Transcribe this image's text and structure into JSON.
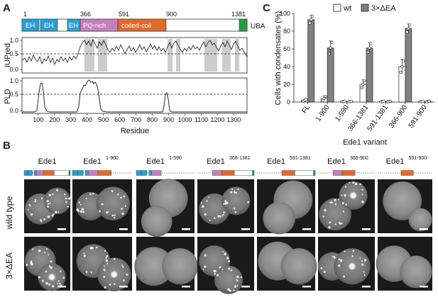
{
  "panels": {
    "a_letter": "A",
    "b_letter": "B",
    "c_letter": "C"
  },
  "domain_map": {
    "positions": [
      "1",
      "366",
      "591",
      "900",
      "1381"
    ],
    "domains": [
      {
        "label": "EH",
        "color": "#2e9fd0"
      },
      {
        "label": "EH",
        "color": "#2e9fd0"
      },
      {
        "label": "EH",
        "color": "#2e9fd0"
      },
      {
        "label": "PQ-rich",
        "color": "#c47fc0"
      },
      {
        "label": "coiled-coil",
        "color": "#e06a2d"
      },
      {
        "label": "UBA",
        "color": "#2a9a4a"
      }
    ]
  },
  "iupred": {
    "ylabel": "IUPred",
    "yticks": [
      "0.0",
      "0.5",
      "1.0"
    ],
    "threshold": 0.5
  },
  "pld": {
    "ylabel": "PLD",
    "yticks": [
      "0.0",
      "0.5",
      "1.0"
    ],
    "threshold": 0.5,
    "xticks": [
      "100",
      "200",
      "300",
      "400",
      "500",
      "600",
      "700",
      "800",
      "900",
      "1000",
      "1100",
      "1200",
      "1300"
    ],
    "xlabel": "Residue"
  },
  "micrographs": {
    "variants": [
      {
        "base": "Ede1",
        "sup": ""
      },
      {
        "base": "Ede1",
        "sup": "1-900"
      },
      {
        "base": "Ede1",
        "sup": "1-590"
      },
      {
        "base": "Ede1",
        "sup": "366-1381"
      },
      {
        "base": "Ede1",
        "sup": "591-1381"
      },
      {
        "base": "Ede1",
        "sup": "366-900"
      },
      {
        "base": "Ede1",
        "sup": "591-900"
      }
    ],
    "row_labels": [
      "wild type",
      "3×ΔEA"
    ]
  },
  "chart_data": {
    "type": "bar",
    "title": "",
    "ylabel": "Cells with condensates (%)",
    "xlabel": "Ede1 variant",
    "ylim": [
      0,
      100
    ],
    "yticks": [
      "0",
      "20",
      "40",
      "60",
      "80",
      "100"
    ],
    "categories": [
      "FL",
      "1-900",
      "1-590",
      "366-1381",
      "591-1381",
      "366-900",
      "591-900"
    ],
    "legend_position": "top",
    "series": [
      {
        "name": "wt",
        "color": "#ffffff",
        "values": [
          2,
          4,
          0.5,
          20,
          0.5,
          40,
          0.5
        ],
        "errors": [
          1,
          3,
          0.5,
          5,
          0.5,
          8,
          0.5
        ]
      },
      {
        "name": "3×ΔEA",
        "color": "#808080",
        "values": [
          93,
          61,
          0.5,
          61,
          0.5,
          83,
          0.5
        ],
        "errors": [
          5,
          8,
          0.5,
          6,
          0.5,
          5,
          0.5
        ]
      }
    ]
  }
}
